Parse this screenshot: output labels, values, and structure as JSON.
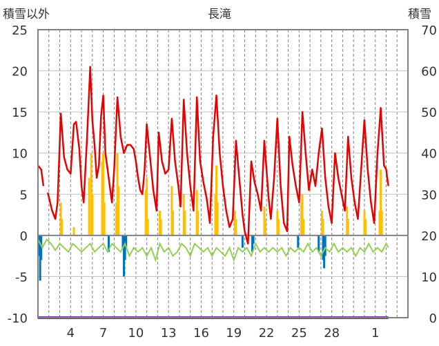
{
  "chart_data": {
    "type": "line",
    "title": "長滝",
    "left_axis_label": "積雪以外",
    "right_axis_label": "積雪",
    "y_left": {
      "min": -10,
      "max": 25,
      "ticks": [
        "25",
        "20",
        "15",
        "10",
        "5",
        "0",
        "-5",
        "-10"
      ]
    },
    "y_right": {
      "min": 0,
      "max": 70,
      "ticks": [
        "70",
        "60",
        "50",
        "40",
        "30",
        "20",
        "10",
        "0"
      ]
    },
    "x": {
      "day_start": 1,
      "day_end": 35,
      "tick_labels": [
        "4",
        "7",
        "10",
        "13",
        "16",
        "19",
        "22",
        "25",
        "28",
        "1"
      ],
      "tick_days": [
        4,
        7,
        10,
        13,
        16,
        19,
        22,
        25,
        28,
        32
      ],
      "grid": "dashed-daily"
    },
    "colors": {
      "temperature": "#e80000",
      "sunshine": "#ffc000",
      "precipitation": "#0070c0",
      "snow_depth": "#7030a0",
      "humidity_diff": "#92d050",
      "zero_line": "#808080",
      "frame": "#808080"
    },
    "series": [
      {
        "key": "temperature",
        "axis": "left",
        "points": [
          [
            1.0,
            8.5
          ],
          [
            1.3,
            8.0
          ],
          [
            1.5,
            6.0
          ],
          [
            1.7,
            null
          ],
          [
            1.9,
            5.2
          ],
          [
            2.3,
            3.0
          ],
          [
            2.6,
            2.0
          ],
          [
            2.8,
            4.0
          ],
          [
            3.1,
            14.8
          ],
          [
            3.4,
            9.5
          ],
          [
            3.7,
            8.0
          ],
          [
            4.0,
            7.5
          ],
          [
            4.3,
            13.5
          ],
          [
            4.5,
            13.8
          ],
          [
            4.8,
            10.5
          ],
          [
            5.0,
            6.0
          ],
          [
            5.2,
            4.0
          ],
          [
            5.5,
            11.5
          ],
          [
            5.8,
            20.5
          ],
          [
            6.0,
            14.0
          ],
          [
            6.2,
            11.0
          ],
          [
            6.4,
            7.0
          ],
          [
            6.6,
            8.5
          ],
          [
            6.8,
            14.5
          ],
          [
            7.0,
            17.0
          ],
          [
            7.2,
            10.0
          ],
          [
            7.4,
            8.0
          ],
          [
            7.6,
            6.0
          ],
          [
            7.8,
            4.0
          ],
          [
            8.0,
            8.0
          ],
          [
            8.3,
            16.8
          ],
          [
            8.6,
            12.0
          ],
          [
            8.9,
            10.0
          ],
          [
            9.2,
            11.0
          ],
          [
            9.5,
            11.0
          ],
          [
            9.8,
            10.5
          ],
          [
            10.0,
            9.0
          ],
          [
            10.2,
            7.0
          ],
          [
            10.4,
            5.5
          ],
          [
            10.6,
            5.0
          ],
          [
            10.8,
            8.0
          ],
          [
            11.0,
            13.5
          ],
          [
            11.3,
            9.5
          ],
          [
            11.6,
            5.5
          ],
          [
            11.9,
            3.0
          ],
          [
            12.1,
            12.5
          ],
          [
            12.4,
            9.0
          ],
          [
            12.7,
            7.5
          ],
          [
            13.0,
            8.0
          ],
          [
            13.3,
            14.2
          ],
          [
            13.6,
            9.0
          ],
          [
            13.9,
            6.0
          ],
          [
            14.1,
            3.5
          ],
          [
            14.4,
            16.5
          ],
          [
            14.7,
            10.0
          ],
          [
            15.0,
            6.0
          ],
          [
            15.3,
            3.0
          ],
          [
            15.6,
            16.8
          ],
          [
            15.9,
            9.0
          ],
          [
            16.2,
            6.5
          ],
          [
            16.5,
            4.5
          ],
          [
            16.8,
            1.5
          ],
          [
            17.1,
            12.0
          ],
          [
            17.4,
            17.0
          ],
          [
            17.7,
            10.0
          ],
          [
            18.0,
            6.0
          ],
          [
            18.3,
            3.0
          ],
          [
            18.6,
            1.0
          ],
          [
            18.9,
            2.0
          ],
          [
            19.2,
            11.5
          ],
          [
            19.5,
            7.0
          ],
          [
            19.8,
            2.5
          ],
          [
            20.0,
            0.5
          ],
          [
            20.3,
            -1.0
          ],
          [
            20.6,
            9.0
          ],
          [
            20.9,
            6.5
          ],
          [
            21.2,
            5.0
          ],
          [
            21.5,
            3.0
          ],
          [
            21.8,
            11.5
          ],
          [
            22.0,
            8.0
          ],
          [
            22.2,
            4.5
          ],
          [
            22.4,
            2.0
          ],
          [
            22.7,
            7.0
          ],
          [
            23.0,
            14.2
          ],
          [
            23.3,
            6.0
          ],
          [
            23.6,
            1.5
          ],
          [
            23.9,
            0.5
          ],
          [
            24.1,
            12.0
          ],
          [
            24.4,
            8.5
          ],
          [
            24.7,
            6.0
          ],
          [
            25.0,
            4.0
          ],
          [
            25.3,
            15.0
          ],
          [
            25.6,
            10.0
          ],
          [
            25.9,
            5.5
          ],
          [
            26.2,
            8.0
          ],
          [
            26.5,
            6.0
          ],
          [
            26.8,
            10.0
          ],
          [
            27.1,
            13.0
          ],
          [
            27.4,
            7.0
          ],
          [
            27.7,
            3.5
          ],
          [
            28.0,
            1.5
          ],
          [
            28.3,
            10.0
          ],
          [
            28.6,
            7.0
          ],
          [
            28.9,
            5.0
          ],
          [
            29.2,
            3.0
          ],
          [
            29.5,
            12.0
          ],
          [
            29.8,
            7.0
          ],
          [
            30.1,
            4.0
          ],
          [
            30.4,
            2.0
          ],
          [
            30.7,
            8.0
          ],
          [
            31.0,
            14.0
          ],
          [
            31.3,
            8.0
          ],
          [
            31.6,
            4.0
          ],
          [
            31.9,
            1.5
          ],
          [
            32.2,
            10.0
          ],
          [
            32.5,
            15.5
          ],
          [
            32.8,
            8.5
          ],
          [
            33.0,
            8.0
          ],
          [
            33.2,
            6.0
          ]
        ]
      },
      {
        "key": "humidity_diff",
        "axis": "left",
        "points": [
          [
            1.0,
            -0.5
          ],
          [
            1.4,
            -1.5
          ],
          [
            1.8,
            -0.5
          ],
          [
            2.2,
            -1.0
          ],
          [
            2.6,
            -1.8
          ],
          [
            3.0,
            -1.0
          ],
          [
            3.4,
            -1.5
          ],
          [
            3.8,
            -2.0
          ],
          [
            4.2,
            -1.0
          ],
          [
            4.6,
            -1.5
          ],
          [
            5.0,
            -2.0
          ],
          [
            5.4,
            -1.5
          ],
          [
            5.8,
            -1.0
          ],
          [
            6.2,
            -2.0
          ],
          [
            6.6,
            -1.5
          ],
          [
            7.0,
            -1.0
          ],
          [
            7.4,
            -2.0
          ],
          [
            7.8,
            -1.0
          ],
          [
            8.2,
            -1.5
          ],
          [
            8.6,
            -2.0
          ],
          [
            9.0,
            -1.0
          ],
          [
            9.4,
            -2.5
          ],
          [
            9.8,
            -1.5
          ],
          [
            10.2,
            -2.0
          ],
          [
            10.6,
            -1.5
          ],
          [
            11.0,
            -2.5
          ],
          [
            11.4,
            -1.5
          ],
          [
            11.8,
            -3.0
          ],
          [
            12.2,
            -1.0
          ],
          [
            12.6,
            -2.0
          ],
          [
            13.0,
            -1.5
          ],
          [
            13.4,
            -2.5
          ],
          [
            13.8,
            -2.0
          ],
          [
            14.2,
            -1.0
          ],
          [
            14.6,
            -1.5
          ],
          [
            15.0,
            -2.5
          ],
          [
            15.4,
            -1.0
          ],
          [
            15.8,
            -1.5
          ],
          [
            16.2,
            -2.0
          ],
          [
            16.6,
            -1.5
          ],
          [
            17.0,
            -2.5
          ],
          [
            17.4,
            -1.5
          ],
          [
            17.8,
            -2.0
          ],
          [
            18.2,
            -2.5
          ],
          [
            18.6,
            -1.5
          ],
          [
            19.0,
            -3.0
          ],
          [
            19.4,
            -1.5
          ],
          [
            19.8,
            -2.0
          ],
          [
            20.2,
            -1.5
          ],
          [
            20.6,
            -2.5
          ],
          [
            21.0,
            -1.0
          ],
          [
            21.4,
            -2.0
          ],
          [
            21.8,
            -1.5
          ],
          [
            22.2,
            -2.0
          ],
          [
            22.6,
            -1.5
          ],
          [
            23.0,
            -2.0
          ],
          [
            23.4,
            -1.5
          ],
          [
            23.8,
            -2.5
          ],
          [
            24.2,
            -1.5
          ],
          [
            24.6,
            -2.0
          ],
          [
            25.0,
            -1.5
          ],
          [
            25.4,
            -2.0
          ],
          [
            25.8,
            -1.0
          ],
          [
            26.2,
            -2.0
          ],
          [
            26.6,
            -1.5
          ],
          [
            27.0,
            -2.5
          ],
          [
            27.4,
            -1.5
          ],
          [
            27.8,
            -2.0
          ],
          [
            28.2,
            -1.0
          ],
          [
            28.6,
            -2.0
          ],
          [
            29.0,
            -1.5
          ],
          [
            29.4,
            -2.0
          ],
          [
            29.8,
            -1.5
          ],
          [
            30.2,
            -2.5
          ],
          [
            30.6,
            -1.5
          ],
          [
            31.0,
            -2.0
          ],
          [
            31.4,
            -1.0
          ],
          [
            31.8,
            -2.0
          ],
          [
            32.2,
            -1.5
          ],
          [
            32.6,
            -2.0
          ],
          [
            33.0,
            -1.0
          ],
          [
            33.2,
            -1.5
          ]
        ]
      },
      {
        "key": "snow_depth",
        "axis": "right",
        "points": [
          [
            1.0,
            0
          ],
          [
            33.2,
            0
          ]
        ]
      }
    ],
    "bars": [
      {
        "key": "sunshine",
        "axis": "left",
        "points": [
          [
            3.1,
            4.0
          ],
          [
            3.2,
            2.0
          ],
          [
            4.3,
            1.0
          ],
          [
            5.7,
            7.0
          ],
          [
            5.9,
            10.0
          ],
          [
            6.0,
            5.0
          ],
          [
            6.9,
            9.0
          ],
          [
            7.0,
            10.0
          ],
          [
            7.1,
            4.0
          ],
          [
            8.2,
            4.0
          ],
          [
            8.3,
            10.0
          ],
          [
            8.4,
            6.0
          ],
          [
            10.9,
            5.5
          ],
          [
            11.0,
            7.0
          ],
          [
            11.1,
            2.0
          ],
          [
            12.2,
            3.0
          ],
          [
            12.3,
            2.0
          ],
          [
            13.3,
            6.0
          ],
          [
            13.4,
            3.0
          ],
          [
            14.4,
            5.0
          ],
          [
            14.5,
            3.0
          ],
          [
            15.6,
            5.5
          ],
          [
            15.7,
            3.0
          ],
          [
            17.3,
            5.0
          ],
          [
            17.4,
            8.5
          ],
          [
            17.5,
            4.0
          ],
          [
            19.1,
            3.0
          ],
          [
            19.2,
            2.0
          ],
          [
            21.8,
            3.5
          ],
          [
            21.9,
            2.0
          ],
          [
            23.0,
            3.0
          ],
          [
            23.1,
            2.0
          ],
          [
            25.2,
            4.0
          ],
          [
            25.3,
            5.0
          ],
          [
            25.4,
            2.0
          ],
          [
            27.1,
            3.0
          ],
          [
            27.2,
            2.0
          ],
          [
            29.4,
            3.5
          ],
          [
            29.5,
            2.0
          ],
          [
            31.0,
            3.0
          ],
          [
            31.1,
            2.0
          ],
          [
            32.4,
            3.0
          ],
          [
            32.5,
            8.0
          ],
          [
            32.6,
            3.0
          ]
        ]
      },
      {
        "key": "precipitation",
        "axis": "left",
        "points": [
          [
            1.1,
            -2.5
          ],
          [
            1.2,
            -5.5
          ],
          [
            1.3,
            -3.0
          ],
          [
            7.5,
            -2.0
          ],
          [
            8.8,
            -1.5
          ],
          [
            8.9,
            -5.0
          ],
          [
            9.0,
            -3.0
          ],
          [
            9.1,
            -1.5
          ],
          [
            19.8,
            -1.5
          ],
          [
            20.7,
            -2.0
          ],
          [
            20.8,
            -1.0
          ],
          [
            24.9,
            -1.5
          ],
          [
            26.8,
            -2.0
          ],
          [
            27.2,
            -3.0
          ],
          [
            27.3,
            -4.0
          ],
          [
            27.4,
            -2.5
          ]
        ]
      }
    ]
  }
}
